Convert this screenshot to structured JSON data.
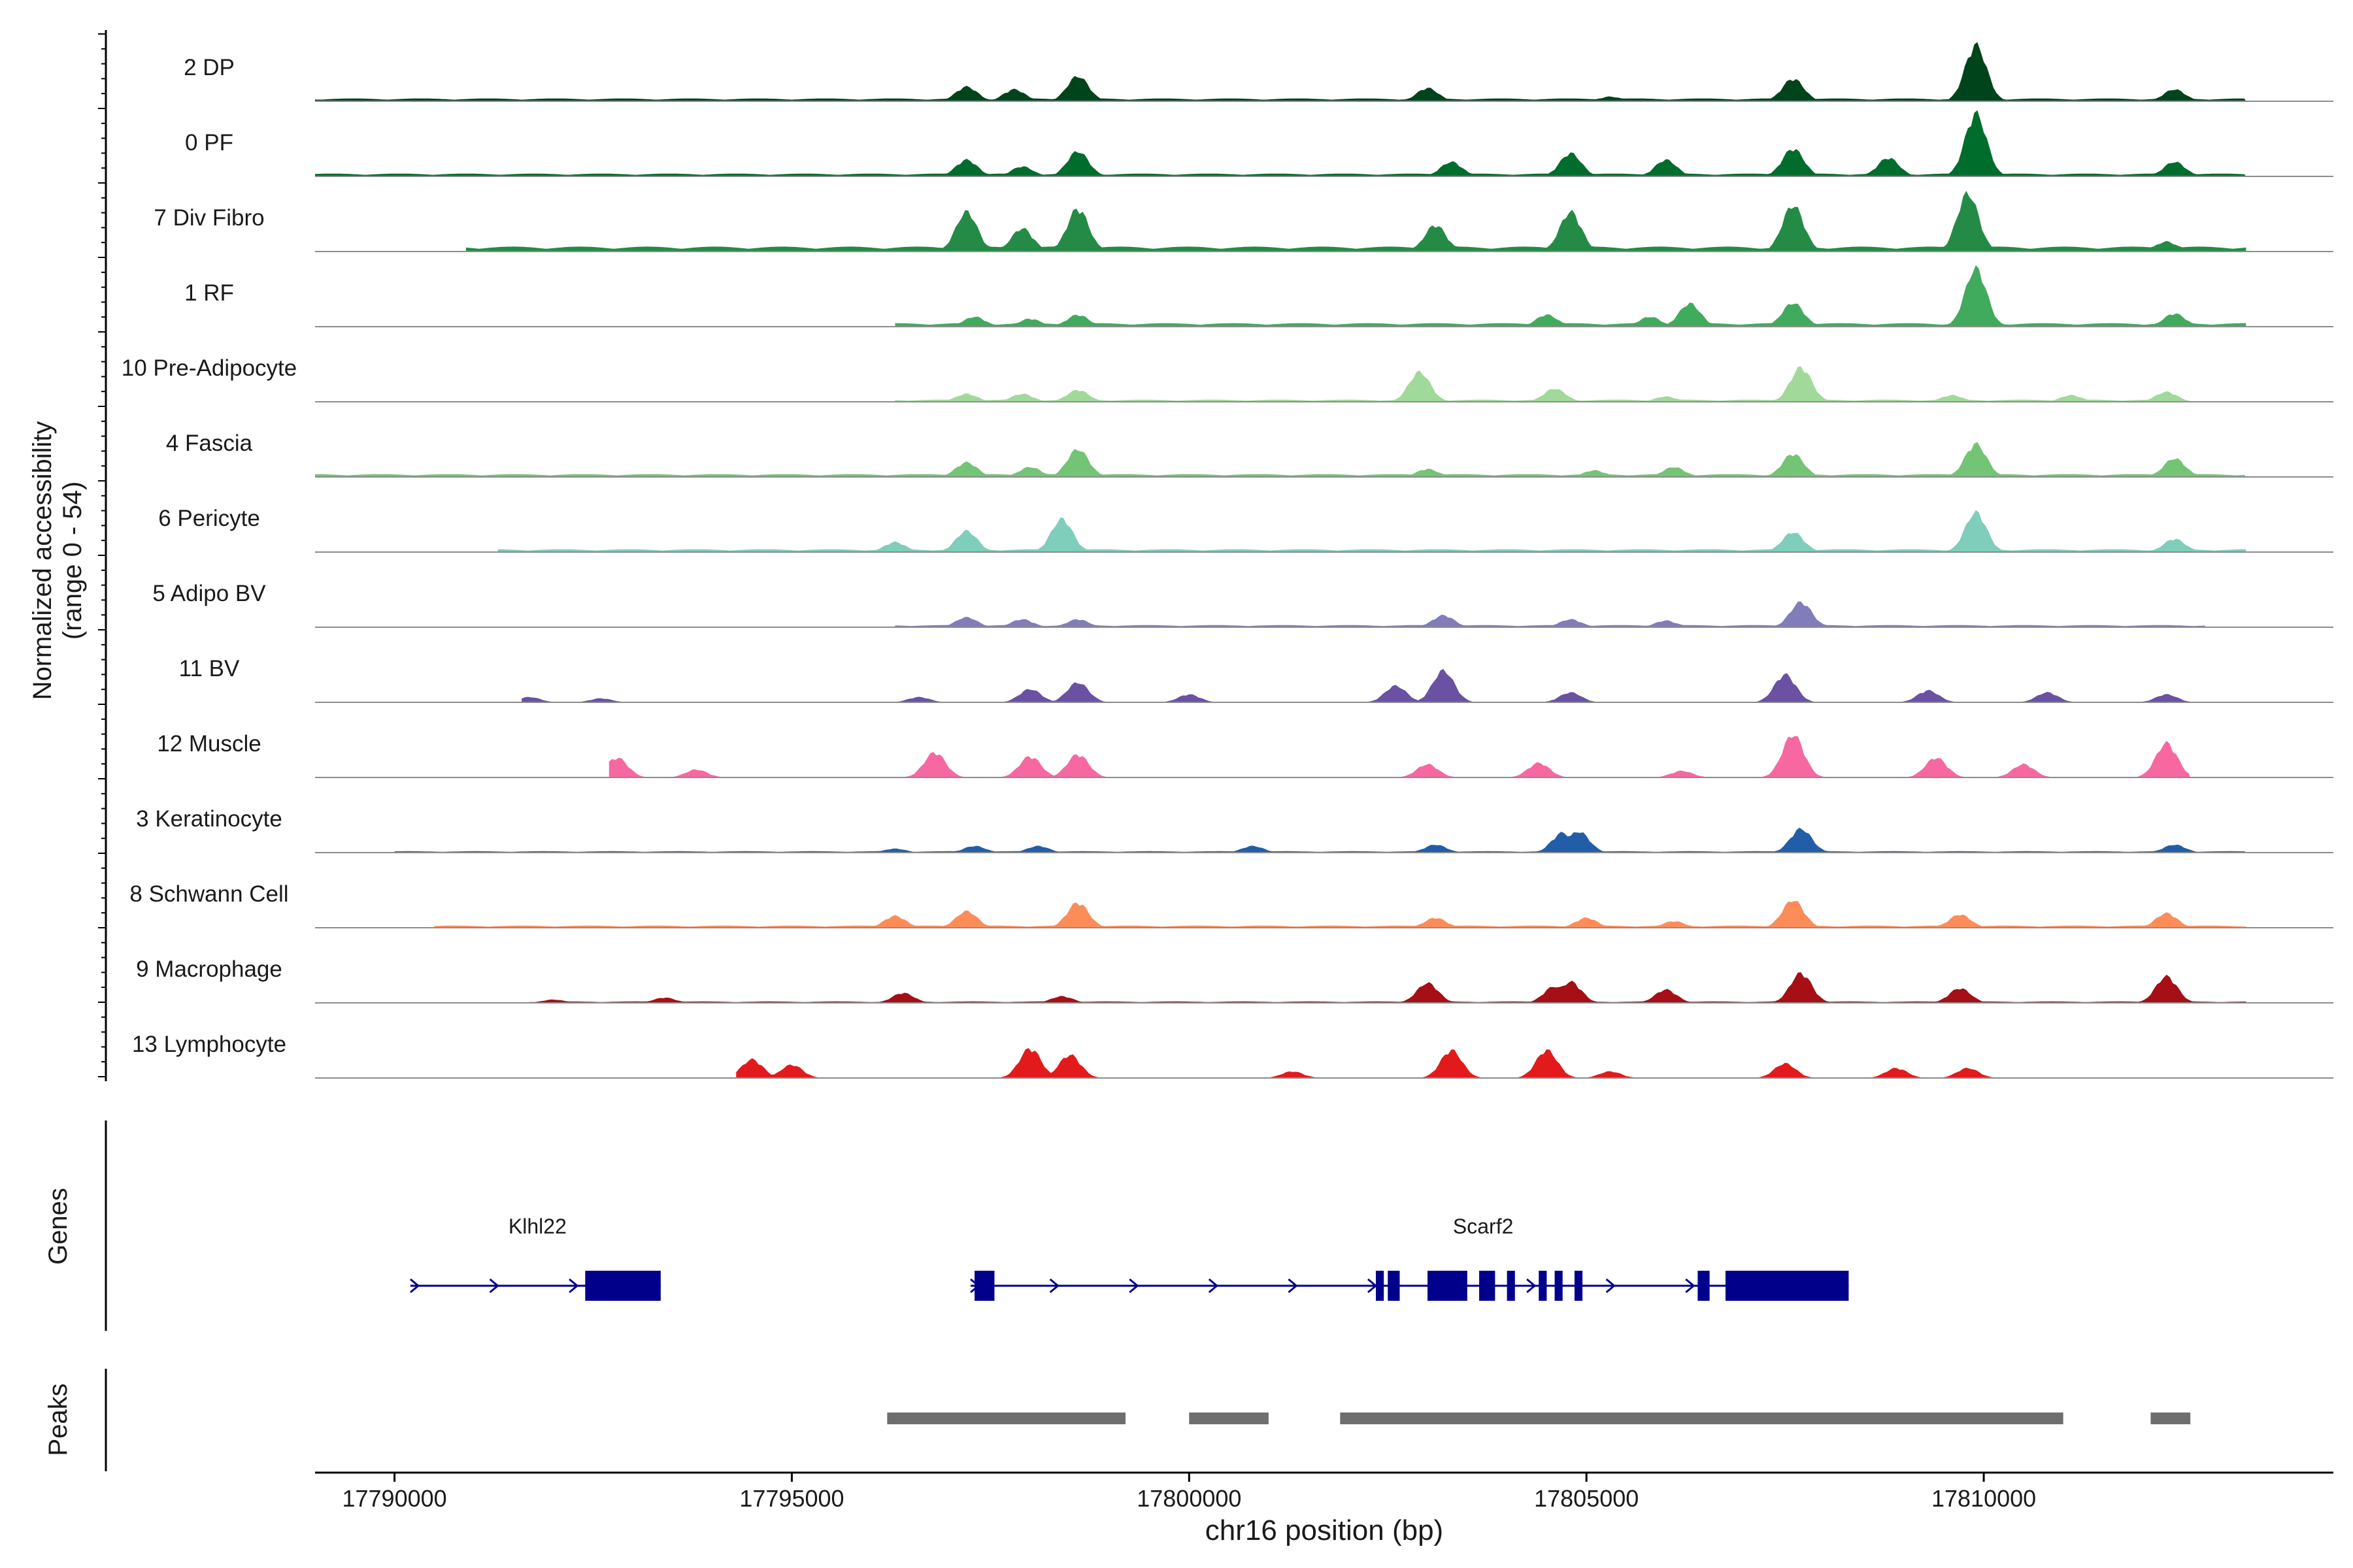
{
  "chart_data": {
    "type": "area",
    "ylabel_line1": "Normalized accessibility",
    "ylabel_line2": "(range 0 - 54)",
    "xlabel": "chr16 position (bp)",
    "xlim": [
      17789000,
      17814400
    ],
    "xticks": [
      {
        "value": 17790000,
        "label": "17790000"
      },
      {
        "value": 17795000,
        "label": "17795000"
      },
      {
        "value": 17800000,
        "label": "17800000"
      },
      {
        "value": 17805000,
        "label": "17805000"
      },
      {
        "value": 17810000,
        "label": "17810000"
      }
    ],
    "tracks": [
      {
        "name": "2 DP",
        "color": "#00441b",
        "start": 17789000,
        "end": 17813300,
        "base": 0.04,
        "peaks": [
          [
            17797200,
            0.22
          ],
          [
            17797800,
            0.18
          ],
          [
            17798600,
            0.38
          ],
          [
            17803000,
            0.2
          ],
          [
            17805300,
            0.07
          ],
          [
            17807600,
            0.34
          ],
          [
            17809900,
            0.85
          ],
          [
            17812400,
            0.18
          ]
        ]
      },
      {
        "name": "0 PF",
        "color": "#006d2c",
        "start": 17789000,
        "end": 17813300,
        "base": 0.04,
        "peaks": [
          [
            17797200,
            0.25
          ],
          [
            17797900,
            0.15
          ],
          [
            17798600,
            0.38
          ],
          [
            17803300,
            0.22
          ],
          [
            17804800,
            0.35
          ],
          [
            17806000,
            0.25
          ],
          [
            17807600,
            0.42
          ],
          [
            17808800,
            0.28
          ],
          [
            17809900,
            0.95
          ],
          [
            17812400,
            0.22
          ]
        ]
      },
      {
        "name": "7 Div Fibro",
        "color": "#238b45",
        "start": 17790900,
        "end": 17813300,
        "base": 0.07,
        "peaks": [
          [
            17797200,
            0.6
          ],
          [
            17797900,
            0.35
          ],
          [
            17798600,
            0.65
          ],
          [
            17803100,
            0.4
          ],
          [
            17804800,
            0.6
          ],
          [
            17807600,
            0.7
          ],
          [
            17809800,
            0.88
          ],
          [
            17812300,
            0.15
          ]
        ]
      },
      {
        "name": "1 RF",
        "color": "#41ab5d",
        "start": 17796300,
        "end": 17813300,
        "base": 0.05,
        "peaks": [
          [
            17797300,
            0.15
          ],
          [
            17798000,
            0.12
          ],
          [
            17798600,
            0.18
          ],
          [
            17804500,
            0.18
          ],
          [
            17805800,
            0.15
          ],
          [
            17806300,
            0.35
          ],
          [
            17807600,
            0.36
          ],
          [
            17809900,
            0.88
          ],
          [
            17812400,
            0.2
          ]
        ]
      },
      {
        "name": "10 Pre-Adipocyte",
        "color": "#a1d99b",
        "start": 17796300,
        "end": 17812600,
        "base": 0.03,
        "peaks": [
          [
            17797200,
            0.12
          ],
          [
            17797900,
            0.12
          ],
          [
            17798600,
            0.18
          ],
          [
            17802900,
            0.45
          ],
          [
            17804600,
            0.2
          ],
          [
            17806000,
            0.08
          ],
          [
            17807700,
            0.52
          ],
          [
            17809600,
            0.1
          ],
          [
            17811100,
            0.1
          ],
          [
            17812300,
            0.15
          ]
        ]
      },
      {
        "name": "4 Fascia",
        "color": "#74c476",
        "start": 17789000,
        "end": 17813300,
        "base": 0.04,
        "peaks": [
          [
            17797200,
            0.22
          ],
          [
            17798000,
            0.15
          ],
          [
            17798600,
            0.42
          ],
          [
            17803000,
            0.12
          ],
          [
            17805100,
            0.1
          ],
          [
            17806100,
            0.15
          ],
          [
            17807600,
            0.35
          ],
          [
            17809900,
            0.5
          ],
          [
            17812400,
            0.28
          ]
        ]
      },
      {
        "name": "6 Pericyte",
        "color": "#7fcdbb",
        "start": 17791300,
        "end": 17813300,
        "base": 0.04,
        "peaks": [
          [
            17796300,
            0.15
          ],
          [
            17797200,
            0.32
          ],
          [
            17798400,
            0.5
          ],
          [
            17807600,
            0.3
          ],
          [
            17809900,
            0.6
          ],
          [
            17812400,
            0.2
          ]
        ]
      },
      {
        "name": "5 Adipo BV",
        "color": "#807dba",
        "start": 17796300,
        "end": 17812800,
        "base": 0.03,
        "peaks": [
          [
            17797200,
            0.15
          ],
          [
            17797900,
            0.12
          ],
          [
            17798600,
            0.12
          ],
          [
            17803200,
            0.18
          ],
          [
            17804800,
            0.12
          ],
          [
            17806000,
            0.1
          ],
          [
            17807700,
            0.38
          ]
        ]
      },
      {
        "name": "11 BV",
        "color": "#6a51a3",
        "start": 17791600,
        "end": 17812800,
        "base": 0.0,
        "peaks": [
          [
            17791700,
            0.08
          ],
          [
            17792600,
            0.06
          ],
          [
            17796600,
            0.08
          ],
          [
            17798000,
            0.2
          ],
          [
            17798600,
            0.3
          ],
          [
            17800000,
            0.12
          ],
          [
            17802600,
            0.25
          ],
          [
            17803200,
            0.48
          ],
          [
            17804800,
            0.15
          ],
          [
            17807500,
            0.42
          ],
          [
            17809300,
            0.18
          ],
          [
            17810800,
            0.15
          ],
          [
            17812300,
            0.12
          ]
        ]
      },
      {
        "name": "12 Muscle",
        "color": "#f768a1",
        "start": 17792700,
        "end": 17812600,
        "base": 0.0,
        "peaks": [
          [
            17792800,
            0.3
          ],
          [
            17793800,
            0.12
          ],
          [
            17796800,
            0.38
          ],
          [
            17798000,
            0.32
          ],
          [
            17798600,
            0.35
          ],
          [
            17803000,
            0.2
          ],
          [
            17804400,
            0.22
          ],
          [
            17806200,
            0.1
          ],
          [
            17807600,
            0.65
          ],
          [
            17809400,
            0.3
          ],
          [
            17810500,
            0.2
          ],
          [
            17812300,
            0.52
          ]
        ]
      },
      {
        "name": "3 Keratinocyte",
        "color": "#225ea8",
        "start": 17790000,
        "end": 17813300,
        "base": 0.02,
        "peaks": [
          [
            17796300,
            0.06
          ],
          [
            17797300,
            0.1
          ],
          [
            17798100,
            0.1
          ],
          [
            17800800,
            0.1
          ],
          [
            17803100,
            0.12
          ],
          [
            17804700,
            0.3
          ],
          [
            17804900,
            0.32
          ],
          [
            17807700,
            0.36
          ],
          [
            17812400,
            0.12
          ]
        ]
      },
      {
        "name": "8 Schwann Cell",
        "color": "#fc8d59",
        "start": 17790500,
        "end": 17813300,
        "base": 0.03,
        "peaks": [
          [
            17796300,
            0.18
          ],
          [
            17797200,
            0.25
          ],
          [
            17798600,
            0.38
          ],
          [
            17803100,
            0.15
          ],
          [
            17805000,
            0.15
          ],
          [
            17806100,
            0.1
          ],
          [
            17807600,
            0.42
          ],
          [
            17809700,
            0.2
          ],
          [
            17812300,
            0.22
          ]
        ]
      },
      {
        "name": "9 Macrophage",
        "color": "#a50f15",
        "start": 17791700,
        "end": 17813300,
        "base": 0.02,
        "peaks": [
          [
            17792000,
            0.05
          ],
          [
            17793400,
            0.08
          ],
          [
            17796400,
            0.15
          ],
          [
            17798400,
            0.1
          ],
          [
            17803000,
            0.3
          ],
          [
            17804600,
            0.25
          ],
          [
            17804800,
            0.32
          ],
          [
            17806000,
            0.2
          ],
          [
            17807700,
            0.45
          ],
          [
            17809700,
            0.22
          ],
          [
            17812300,
            0.4
          ]
        ]
      },
      {
        "name": "13 Lymphocyte",
        "color": "#e31a1c",
        "start": 17794300,
        "end": 17810500,
        "base": 0.0,
        "peaks": [
          [
            17794500,
            0.28
          ],
          [
            17795000,
            0.2
          ],
          [
            17798000,
            0.45
          ],
          [
            17798500,
            0.35
          ],
          [
            17801300,
            0.1
          ],
          [
            17803300,
            0.42
          ],
          [
            17804500,
            0.42
          ],
          [
            17805300,
            0.1
          ],
          [
            17807500,
            0.22
          ],
          [
            17808900,
            0.15
          ],
          [
            17809800,
            0.15
          ]
        ]
      }
    ],
    "genes": {
      "label": "Genes",
      "items": [
        {
          "name": "Klhl22",
          "start": 17790200,
          "end": 17793350,
          "strand": "+",
          "exons": [
            [
              17792400,
              17793350
            ]
          ]
        },
        {
          "name": "Scarf2",
          "start": 17797250,
          "end": 17808300,
          "strand": "+",
          "exons": [
            [
              17797300,
              17797550
            ],
            [
              17802350,
              17802450
            ],
            [
              17802500,
              17802650
            ],
            [
              17803000,
              17803500
            ],
            [
              17803650,
              17803850
            ],
            [
              17804000,
              17804100
            ],
            [
              17804400,
              17804500
            ],
            [
              17804600,
              17804700
            ],
            [
              17804850,
              17804950
            ],
            [
              17806400,
              17806550
            ],
            [
              17806750,
              17808300
            ]
          ]
        }
      ]
    },
    "peaks": {
      "label": "Peaks",
      "regions": [
        [
          17796200,
          17799200
        ],
        [
          17800000,
          17801000
        ],
        [
          17801900,
          17811000
        ],
        [
          17812100,
          17812600
        ]
      ]
    }
  }
}
